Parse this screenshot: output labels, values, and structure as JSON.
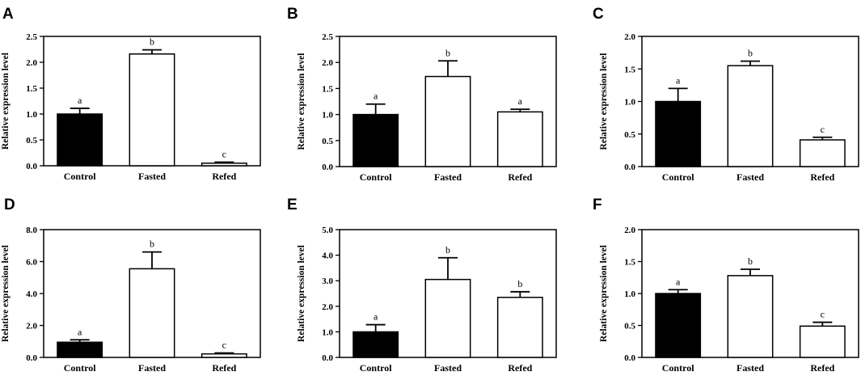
{
  "figure": {
    "fill_colors": [
      "#000000",
      "#ffffff",
      "#ffffff"
    ],
    "stroke_color": "#000000"
  },
  "chart_data": [
    {
      "panel": "A",
      "type": "bar",
      "categories": [
        "Control",
        "Fasted",
        "Refed"
      ],
      "values": [
        1.0,
        2.16,
        0.05
      ],
      "errors": [
        0.11,
        0.08,
        0.02
      ],
      "significance": [
        "a",
        "b",
        "c"
      ],
      "ylabel": "Relative expression level",
      "ylim": [
        0,
        2.5
      ],
      "yticks": [
        "0.0",
        "0.5",
        "1.0",
        "1.5",
        "2.0",
        "2.5"
      ]
    },
    {
      "panel": "B",
      "type": "bar",
      "categories": [
        "Control",
        "Fasted",
        "Refed"
      ],
      "values": [
        1.0,
        1.73,
        1.05
      ],
      "errors": [
        0.2,
        0.3,
        0.05
      ],
      "significance": [
        "a",
        "b",
        "a"
      ],
      "ylabel": "Relative expression level",
      "ylim": [
        0,
        2.5
      ],
      "yticks": [
        "0.0",
        "0.5",
        "1.0",
        "1.5",
        "2.0",
        "2.5"
      ]
    },
    {
      "panel": "C",
      "type": "bar",
      "categories": [
        "Control",
        "Fasted",
        "Refed"
      ],
      "values": [
        1.0,
        1.55,
        0.41
      ],
      "errors": [
        0.2,
        0.07,
        0.04
      ],
      "significance": [
        "a",
        "b",
        "c"
      ],
      "ylabel": "Relative expression level",
      "ylim": [
        0,
        2.0
      ],
      "yticks": [
        "0.0",
        "0.5",
        "1.0",
        "1.5",
        "2.0"
      ]
    },
    {
      "panel": "D",
      "type": "bar",
      "categories": [
        "Control",
        "Fasted",
        "Refed"
      ],
      "values": [
        0.95,
        5.55,
        0.22
      ],
      "errors": [
        0.15,
        1.05,
        0.06
      ],
      "significance": [
        "a",
        "b",
        "c"
      ],
      "ylabel": "Relative expression level",
      "ylim": [
        0,
        8.0
      ],
      "yticks": [
        "0.0",
        "2.0",
        "4.0",
        "6.0",
        "8.0"
      ]
    },
    {
      "panel": "E",
      "type": "bar",
      "categories": [
        "Control",
        "Fasted",
        "Refed"
      ],
      "values": [
        1.0,
        3.05,
        2.35
      ],
      "errors": [
        0.28,
        0.85,
        0.22
      ],
      "significance": [
        "a",
        "b",
        "b"
      ],
      "ylabel": "Relative expression level",
      "ylim": [
        0,
        5.0
      ],
      "yticks": [
        "0.0",
        "1.0",
        "2.0",
        "3.0",
        "4.0",
        "5.0"
      ]
    },
    {
      "panel": "F",
      "type": "bar",
      "categories": [
        "Control",
        "Fasted",
        "Refed"
      ],
      "values": [
        1.0,
        1.28,
        0.49
      ],
      "errors": [
        0.06,
        0.1,
        0.06
      ],
      "significance": [
        "a",
        "b",
        "c"
      ],
      "ylabel": "Relative expression level",
      "ylim": [
        0,
        2.0
      ],
      "yticks": [
        "0.0",
        "0.5",
        "1.0",
        "1.5",
        "2.0"
      ]
    }
  ]
}
